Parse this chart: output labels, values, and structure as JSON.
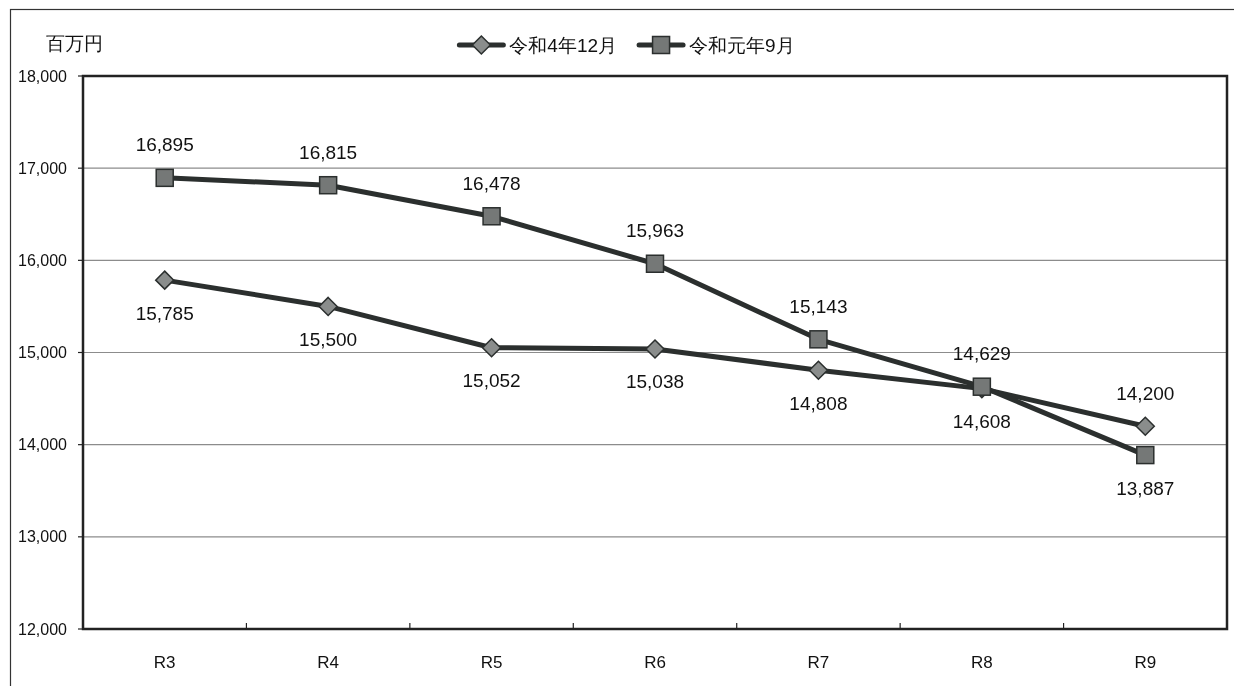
{
  "chart_data": {
    "type": "line",
    "ylabel": "百万円",
    "categories": [
      "R3",
      "R4",
      "R5",
      "R6",
      "R7",
      "R8",
      "R9"
    ],
    "series": [
      {
        "name": "令和4年12月",
        "color": "#2b2f2e",
        "marker": "diamond",
        "values": [
          15785,
          15500,
          15052,
          15038,
          14808,
          14608,
          14200
        ],
        "value_labels": [
          "15,785",
          "15,500",
          "15,052",
          "15,038",
          "14,808",
          "14,608",
          "14,200"
        ]
      },
      {
        "name": "令和元年9月",
        "color": "#2b2f2e",
        "marker": "square",
        "values": [
          16895,
          16815,
          16478,
          15963,
          15143,
          14629,
          13887
        ],
        "value_labels": [
          "16,895",
          "16,815",
          "16,478",
          "15,963",
          "15,143",
          "14,629",
          "13,887"
        ]
      }
    ],
    "ylim": [
      12000,
      18000
    ],
    "yticks": [
      {
        "value": 12000,
        "label": "12,000"
      },
      {
        "value": 13000,
        "label": "13,000"
      },
      {
        "value": 14000,
        "label": "14,000"
      },
      {
        "value": 15000,
        "label": "15,000"
      },
      {
        "value": 16000,
        "label": "16,000"
      },
      {
        "value": 17000,
        "label": "17,000"
      },
      {
        "value": 18000,
        "label": "18,000"
      }
    ],
    "grid": "y",
    "legend": "top"
  }
}
